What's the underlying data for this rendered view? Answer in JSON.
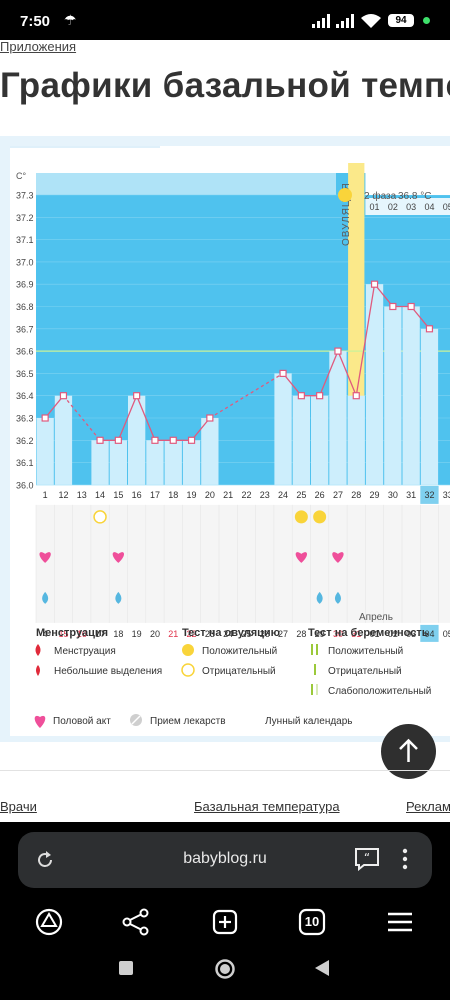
{
  "status": {
    "time": "7:50",
    "battery": "94"
  },
  "page": {
    "breadcrumb": "Приложения",
    "title": "Графики базальной темпе"
  },
  "chart_data": {
    "type": "line",
    "unit_label": "С°",
    "y_ticks": [
      37.3,
      37.2,
      37.1,
      37.0,
      36.9,
      36.8,
      36.7,
      36.6,
      36.5,
      36.4,
      36.3,
      36.2,
      36.1,
      36.0
    ],
    "y_tick_labels": [
      "37.3",
      "37.2",
      "37.1",
      "37.0",
      "36.9",
      "36.8",
      "36.7",
      "36.6",
      "36.5",
      "36.4",
      "36.3",
      "36.2",
      "36.1",
      "36.0"
    ],
    "ylim": [
      36.0,
      37.3
    ],
    "coverline": 36.6,
    "cycle_days": [
      "1",
      "12",
      "13",
      "14",
      "15",
      "16",
      "17",
      "18",
      "19",
      "20",
      "21",
      "22",
      "23",
      "24",
      "25",
      "26",
      "27",
      "28",
      "29",
      "30",
      "31",
      "32",
      "33"
    ],
    "dates": [
      "4",
      "15",
      "16",
      "17",
      "18",
      "19",
      "20",
      "21",
      "22",
      "23",
      "24",
      "25",
      "26",
      "27",
      "28",
      "29",
      "30",
      "31",
      "01",
      "02",
      "03",
      "04",
      "05"
    ],
    "red_dates": [
      1,
      2,
      7,
      8,
      16,
      17
    ],
    "temps": [
      36.3,
      36.4,
      null,
      36.2,
      36.2,
      36.4,
      36.2,
      36.2,
      36.2,
      36.3,
      null,
      null,
      null,
      36.5,
      36.4,
      36.4,
      36.6,
      36.4,
      36.9,
      36.8,
      36.8,
      36.7,
      null
    ],
    "ovulation_index": 17,
    "ovulation_label": "ОВУЛЯЦИЯ",
    "phase2_label": "2 фаза",
    "phase2_temp": "36.8 °C",
    "phase2_days": [
      "01",
      "02",
      "03",
      "04",
      "05"
    ],
    "highlight_day_index": 21,
    "month_label": "Апрель",
    "ovulation_test_positive_idx": [
      14,
      15
    ],
    "ovulation_test_negative_idx": [
      3
    ],
    "intercourse_idx": [
      0,
      4,
      14,
      16
    ],
    "discharge_idx": [
      0,
      4,
      15,
      16
    ]
  },
  "legend": {
    "menstruation_title": "Менструация",
    "menstruation": "Менструация",
    "light_discharge": "Небольшие выделения",
    "ovulation_test_title": "Тест на овуляцию",
    "ov_positive": "Положительный",
    "ov_negative": "Отрицательный",
    "pregnancy_test_title": "Тест на беременность",
    "pr_positive": "Положительный",
    "pr_negative": "Отрицательный",
    "pr_weak": "Слабоположительный",
    "intercourse": "Половой акт",
    "medication": "Прием лекарств",
    "lunar": "Лунный календарь"
  },
  "footer": {
    "link_doctors": "Врачи",
    "link_bbt": "Базальная температура",
    "link_ads": "Реклам"
  },
  "browser": {
    "url": "babyblog.ru",
    "tabs_count": "10"
  },
  "colors": {
    "sky": "#4fc2ee",
    "bar": "#cdeefc",
    "line": "#e05a7e",
    "ovulation": "#fbe98a",
    "accent_pink": "#ef4f9a",
    "accent_yellow": "#f9d43a"
  }
}
